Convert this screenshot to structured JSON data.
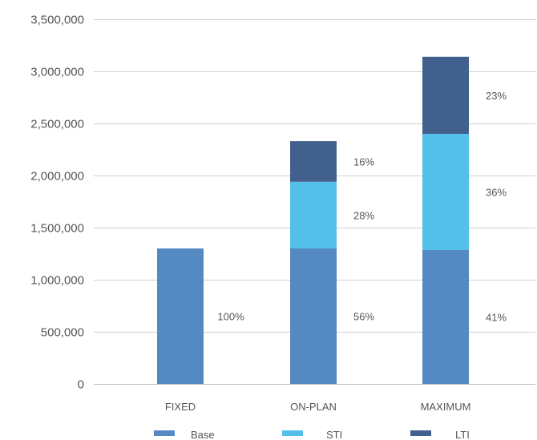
{
  "chart_data": {
    "type": "bar",
    "stacked": true,
    "categories": [
      "FIXED",
      "ON-PLAN",
      "MAXIMUM"
    ],
    "series": [
      {
        "name": "Base",
        "color": "#5589c2",
        "values": [
          1300000,
          1300000,
          1285000
        ],
        "labels": [
          "100%",
          "56%",
          "41%"
        ]
      },
      {
        "name": "STI",
        "color": "#54c0ea",
        "values": [
          0,
          640000,
          1115000
        ],
        "labels": [
          "",
          "28%",
          "36%"
        ]
      },
      {
        "name": "LTI",
        "color": "#42608d",
        "values": [
          0,
          390000,
          740000
        ],
        "labels": [
          "",
          "16%",
          "23%"
        ]
      }
    ],
    "ylim": [
      0,
      3500000
    ],
    "yticks": [
      0,
      500000,
      1000000,
      1500000,
      2000000,
      2500000,
      3000000,
      3500000
    ],
    "ytick_labels": [
      "0",
      "500,000",
      "1,000,000",
      "1,500,000",
      "2,000,000",
      "2,500,000",
      "3,000,000",
      "3,500,000"
    ],
    "grid": true,
    "legend": "bottom"
  }
}
